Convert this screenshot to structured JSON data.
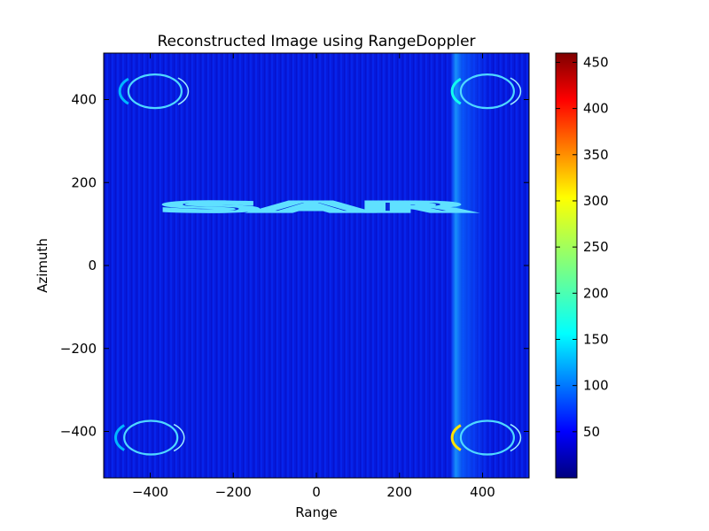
{
  "chart_data": {
    "type": "heatmap",
    "title": "Reconstructed Image using RangeDoppler",
    "xlabel": "Range",
    "ylabel": "Azimuth",
    "xlim": [
      -512,
      512
    ],
    "ylim": [
      512,
      -512
    ],
    "x_ticks": [
      -400,
      -200,
      0,
      200,
      400
    ],
    "y_ticks": [
      -400,
      -200,
      0,
      200,
      400
    ],
    "x_tick_labels": [
      "−400",
      "−200",
      "0",
      "200",
      "400"
    ],
    "y_tick_labels": [
      "−400",
      "−200",
      "0",
      "200",
      "400"
    ],
    "colormap": "jet",
    "colorbar": {
      "min": 0,
      "max": 460,
      "ticks": [
        50,
        100,
        150,
        200,
        250,
        300,
        350,
        400,
        450
      ],
      "tick_labels": [
        "50",
        "100",
        "150",
        "200",
        "250",
        "300",
        "350",
        "400",
        "450"
      ]
    },
    "background_level": 45,
    "image_text": "SAR",
    "features": [
      {
        "kind": "text",
        "text": "SAR",
        "x_range": [
          -370,
          360
        ],
        "y_range": [
          -125,
          125
        ],
        "intensity": 300
      },
      {
        "kind": "vertical-band",
        "x_range": [
          320,
          420
        ],
        "intensity": 130
      },
      {
        "kind": "ring",
        "x": -390,
        "y": -415,
        "intensity": 140
      },
      {
        "kind": "ring",
        "x": -380,
        "y": 420,
        "intensity": 140
      },
      {
        "kind": "ring",
        "x": 420,
        "y": -415,
        "intensity": 300
      },
      {
        "kind": "ring",
        "x": 420,
        "y": 420,
        "intensity": 180
      }
    ]
  }
}
